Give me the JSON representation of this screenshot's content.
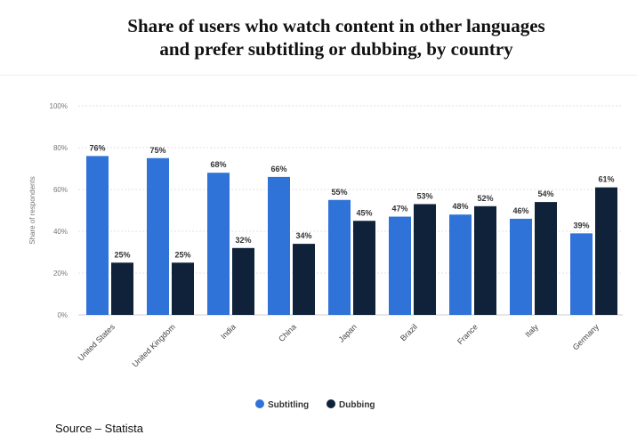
{
  "title_line1": "Share of users who watch content in other languages",
  "title_line2": "and prefer subtitling or dubbing, by country",
  "source": "Source – Statista",
  "chart_data": {
    "type": "bar",
    "title": "Share of users who watch content in other languages and prefer subtitling or dubbing, by country",
    "xlabel": "",
    "ylabel": "Share of respondents",
    "ylim": [
      0,
      100
    ],
    "yticks": [
      "0%",
      "20%",
      "40%",
      "60%",
      "80%",
      "100%"
    ],
    "grid": true,
    "legend_position": "bottom",
    "categories": [
      "United States",
      "United Kingdom",
      "India",
      "China",
      "Japan",
      "Brazil",
      "France",
      "Italy",
      "Germany"
    ],
    "series": [
      {
        "name": "Subtitling",
        "color": "#2f72d8",
        "values": [
          76,
          75,
          68,
          66,
          55,
          47,
          48,
          46,
          39
        ]
      },
      {
        "name": "Dubbing",
        "color": "#0f2239",
        "values": [
          25,
          25,
          32,
          34,
          45,
          53,
          52,
          54,
          61
        ]
      }
    ],
    "value_suffix": "%"
  }
}
